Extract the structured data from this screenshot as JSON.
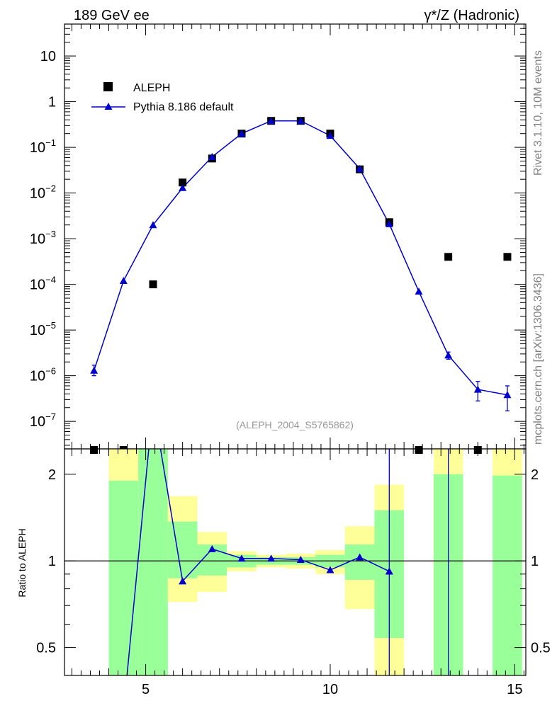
{
  "header": {
    "left_title": "189 GeV ee",
    "right_title": "γ*/Z (Hadronic)"
  },
  "side_text": {
    "rivet": "Rivet 3.1.10,  10M events",
    "mcplots": "mcplots.cern.ch [arXiv:1306.3436]"
  },
  "watermark": "(ALEPH_2004_S5765862)",
  "legend": {
    "data_label": "ALEPH",
    "mc_label": "Pythia 8.186 default"
  },
  "colors": {
    "data": "#000000",
    "mc": "#0000cc",
    "band_inner": "#99ff99",
    "band_outer": "#ffff99",
    "watermark": "#999999"
  },
  "chart_data": [
    {
      "type": "scatter",
      "panel": "main",
      "yscale": "log",
      "xlim": [
        2.8,
        15.3
      ],
      "ylim": [
        2.5e-08,
        50
      ],
      "y_ticks": [
        {
          "v": 10,
          "label": "10"
        },
        {
          "v": 1,
          "label": "1"
        },
        {
          "v": 0.1,
          "base": "10",
          "exp": "−1"
        },
        {
          "v": 0.01,
          "base": "10",
          "exp": "−2"
        },
        {
          "v": 0.001,
          "base": "10",
          "exp": "−3"
        },
        {
          "v": 0.0001,
          "base": "10",
          "exp": "−4"
        },
        {
          "v": 1e-05,
          "base": "10",
          "exp": "−5"
        },
        {
          "v": 1e-06,
          "base": "10",
          "exp": "−6"
        },
        {
          "v": 1e-07,
          "base": "10",
          "exp": "−7"
        }
      ],
      "series": [
        {
          "name": "ALEPH",
          "marker": "square",
          "x": [
            3.6,
            4.4,
            5.2,
            6.0,
            6.8,
            7.6,
            8.4,
            9.2,
            10.0,
            10.8,
            11.6,
            12.4,
            13.2,
            14.0,
            14.8
          ],
          "y": [
            null,
            null,
            0.0001,
            0.017,
            0.057,
            0.2,
            0.38,
            0.38,
            0.2,
            0.033,
            0.0023,
            null,
            0.0004,
            null,
            0.0004
          ]
        },
        {
          "name": "Pythia 8.186 default",
          "marker": "triangle",
          "x": [
            3.6,
            4.4,
            5.2,
            6.0,
            6.8,
            7.6,
            8.4,
            9.2,
            10.0,
            10.8,
            11.6,
            12.4,
            13.2,
            14.0,
            14.8
          ],
          "y": [
            1.3e-06,
            0.00012,
            0.002,
            0.013,
            0.062,
            0.2,
            0.38,
            0.38,
            0.18,
            0.034,
            0.0021,
            7e-05,
            2.8e-06,
            5e-07,
            3.8e-07
          ],
          "yerr_low": [
            1e-06,
            null,
            null,
            null,
            null,
            null,
            null,
            null,
            null,
            null,
            null,
            null,
            2.3e-06,
            2.8e-07,
            1.7e-07
          ],
          "yerr_high": [
            1.7e-06,
            null,
            null,
            null,
            null,
            null,
            null,
            null,
            null,
            null,
            null,
            null,
            3.3e-06,
            7.5e-07,
            6e-07
          ]
        }
      ]
    },
    {
      "type": "line",
      "panel": "ratio",
      "ylabel": "Ratio to ALEPH",
      "yscale": "log",
      "xlim": [
        2.8,
        15.3
      ],
      "ylim": [
        0.4,
        2.45
      ],
      "x_ticks": [
        5,
        10,
        15
      ],
      "y_ticks": [
        0.5,
        1,
        2
      ],
      "bands": [
        {
          "x0": 4.0,
          "x1": 4.8,
          "inner": [
            0.3,
            1.9
          ],
          "outer": [
            0.3,
            2.6
          ]
        },
        {
          "x0": 4.8,
          "x1": 5.6,
          "inner": [
            0.3,
            2.6
          ],
          "outer": [
            0.3,
            2.6
          ]
        },
        {
          "x0": 5.6,
          "x1": 6.4,
          "inner": [
            0.87,
            1.37
          ],
          "outer": [
            0.72,
            1.68
          ]
        },
        {
          "x0": 6.4,
          "x1": 7.2,
          "inner": [
            0.89,
            1.14
          ],
          "outer": [
            0.78,
            1.26
          ]
        },
        {
          "x0": 7.2,
          "x1": 8.0,
          "inner": [
            0.95,
            1.05
          ],
          "outer": [
            0.92,
            1.08
          ]
        },
        {
          "x0": 8.0,
          "x1": 8.8,
          "inner": [
            0.97,
            1.03
          ],
          "outer": [
            0.95,
            1.05
          ]
        },
        {
          "x0": 8.8,
          "x1": 9.6,
          "inner": [
            0.97,
            1.03
          ],
          "outer": [
            0.94,
            1.06
          ]
        },
        {
          "x0": 9.6,
          "x1": 10.4,
          "inner": [
            0.95,
            1.05
          ],
          "outer": [
            0.9,
            1.09
          ]
        },
        {
          "x0": 10.4,
          "x1": 11.2,
          "inner": [
            0.86,
            1.14
          ],
          "outer": [
            0.68,
            1.32
          ]
        },
        {
          "x0": 11.2,
          "x1": 12.0,
          "inner": [
            0.54,
            1.5
          ],
          "outer": [
            0.3,
            1.84
          ]
        },
        {
          "x0": 12.8,
          "x1": 13.6,
          "inner": [
            0.3,
            2.0
          ],
          "outer": [
            0.3,
            2.6
          ]
        },
        {
          "x0": 14.4,
          "x1": 15.2,
          "inner": [
            0.3,
            1.98
          ],
          "outer": [
            0.3,
            2.6
          ]
        }
      ],
      "line_x": [
        4.4,
        5.2,
        6.0,
        6.8,
        7.6,
        8.4,
        9.2,
        10.0,
        10.8,
        11.6
      ],
      "line_y": [
        0.3,
        3.5,
        0.85,
        1.1,
        1.02,
        1.02,
        1.01,
        0.93,
        1.03,
        0.92
      ],
      "markers_x": [
        6.0,
        6.8,
        7.6,
        8.4,
        9.2,
        10.0,
        10.8,
        11.6
      ],
      "markers_y": [
        0.85,
        1.1,
        1.02,
        1.02,
        1.01,
        0.93,
        1.03,
        0.92
      ],
      "vertical_lines": [
        11.6,
        13.2
      ]
    }
  ]
}
